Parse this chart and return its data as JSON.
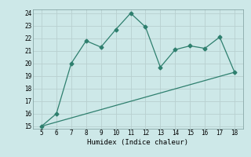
{
  "xlabel": "Humidex (Indice chaleur)",
  "curve_x": [
    5,
    6,
    7,
    8,
    9,
    10,
    11,
    12,
    13,
    14,
    15,
    16,
    17,
    18
  ],
  "curve_y": [
    15.0,
    16.0,
    20.0,
    21.8,
    21.3,
    22.7,
    24.0,
    22.9,
    19.7,
    21.1,
    21.4,
    21.2,
    22.1,
    19.3
  ],
  "line_x": [
    5,
    18
  ],
  "line_y": [
    15.0,
    19.3
  ],
  "line_color": "#2e7f6e",
  "bg_color": "#cde8e8",
  "grid_color": "#b8d0d0",
  "ylim": [
    14.8,
    24.3
  ],
  "xlim": [
    4.4,
    18.6
  ],
  "yticks": [
    15,
    16,
    17,
    18,
    19,
    20,
    21,
    22,
    23,
    24
  ],
  "xticks": [
    5,
    6,
    7,
    8,
    9,
    10,
    11,
    12,
    13,
    14,
    15,
    16,
    17,
    18
  ]
}
